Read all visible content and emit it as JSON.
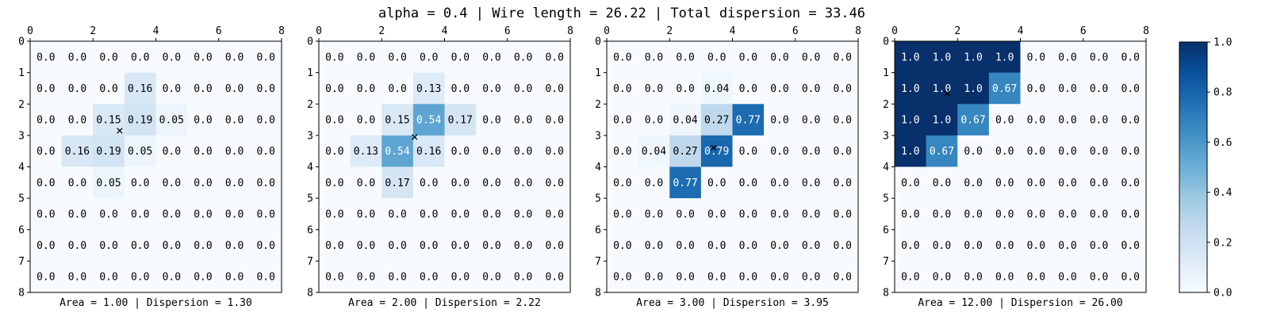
{
  "figure": {
    "title": "alpha = 0.4 | Wire length = 26.22 | Total dispersion = 33.46"
  },
  "chart_data": [
    {
      "type": "heatmap",
      "xlabel": "Area = 1.00 | Dispersion = 1.30",
      "xticks": [
        "0",
        "2",
        "4",
        "6",
        "8"
      ],
      "yticks": [
        "0",
        "1",
        "2",
        "3",
        "4",
        "5",
        "6",
        "7",
        "8"
      ],
      "xlim": [
        0,
        8
      ],
      "ylim": [
        8,
        0
      ],
      "marker": {
        "x": 2.85,
        "y": 2.85,
        "symbol": "×"
      },
      "values": [
        [
          0.0,
          0.0,
          0.0,
          0.0,
          0.0,
          0.0,
          0.0,
          0.0
        ],
        [
          0.0,
          0.0,
          0.0,
          0.16,
          0.0,
          0.0,
          0.0,
          0.0
        ],
        [
          0.0,
          0.0,
          0.15,
          0.19,
          0.05,
          0.0,
          0.0,
          0.0
        ],
        [
          0.0,
          0.16,
          0.19,
          0.05,
          0.0,
          0.0,
          0.0,
          0.0
        ],
        [
          0.0,
          0.0,
          0.05,
          0.0,
          0.0,
          0.0,
          0.0,
          0.0
        ],
        [
          0.0,
          0.0,
          0.0,
          0.0,
          0.0,
          0.0,
          0.0,
          0.0
        ],
        [
          0.0,
          0.0,
          0.0,
          0.0,
          0.0,
          0.0,
          0.0,
          0.0
        ],
        [
          0.0,
          0.0,
          0.0,
          0.0,
          0.0,
          0.0,
          0.0,
          0.0
        ]
      ]
    },
    {
      "type": "heatmap",
      "xlabel": "Area = 2.00 | Dispersion = 2.22",
      "xticks": [
        "0",
        "2",
        "4",
        "6",
        "8"
      ],
      "yticks": [
        "0",
        "1",
        "2",
        "3",
        "4",
        "5",
        "6",
        "7",
        "8"
      ],
      "xlim": [
        0,
        8
      ],
      "ylim": [
        8,
        0
      ],
      "marker": {
        "x": 3.05,
        "y": 3.05,
        "symbol": "×"
      },
      "values": [
        [
          0.0,
          0.0,
          0.0,
          0.0,
          0.0,
          0.0,
          0.0,
          0.0
        ],
        [
          0.0,
          0.0,
          0.0,
          0.13,
          0.0,
          0.0,
          0.0,
          0.0
        ],
        [
          0.0,
          0.0,
          0.15,
          0.54,
          0.17,
          0.0,
          0.0,
          0.0
        ],
        [
          0.0,
          0.13,
          0.54,
          0.16,
          0.0,
          0.0,
          0.0,
          0.0
        ],
        [
          0.0,
          0.0,
          0.17,
          0.0,
          0.0,
          0.0,
          0.0,
          0.0
        ],
        [
          0.0,
          0.0,
          0.0,
          0.0,
          0.0,
          0.0,
          0.0,
          0.0
        ],
        [
          0.0,
          0.0,
          0.0,
          0.0,
          0.0,
          0.0,
          0.0,
          0.0
        ],
        [
          0.0,
          0.0,
          0.0,
          0.0,
          0.0,
          0.0,
          0.0,
          0.0
        ]
      ]
    },
    {
      "type": "heatmap",
      "xlabel": "Area = 3.00 | Dispersion = 3.95",
      "xticks": [
        "0",
        "2",
        "4",
        "6",
        "8"
      ],
      "yticks": [
        "0",
        "1",
        "2",
        "3",
        "4",
        "5",
        "6",
        "7",
        "8"
      ],
      "xlim": [
        0,
        8
      ],
      "ylim": [
        8,
        0
      ],
      "marker": {
        "x": 3.4,
        "y": 3.4,
        "symbol": "×"
      },
      "values": [
        [
          0.0,
          0.0,
          0.0,
          0.0,
          0.0,
          0.0,
          0.0,
          0.0
        ],
        [
          0.0,
          0.0,
          0.0,
          0.04,
          0.0,
          0.0,
          0.0,
          0.0
        ],
        [
          0.0,
          0.0,
          0.04,
          0.27,
          0.77,
          0.0,
          0.0,
          0.0
        ],
        [
          0.0,
          0.04,
          0.27,
          0.79,
          0.0,
          0.0,
          0.0,
          0.0
        ],
        [
          0.0,
          0.0,
          0.77,
          0.0,
          0.0,
          0.0,
          0.0,
          0.0
        ],
        [
          0.0,
          0.0,
          0.0,
          0.0,
          0.0,
          0.0,
          0.0,
          0.0
        ],
        [
          0.0,
          0.0,
          0.0,
          0.0,
          0.0,
          0.0,
          0.0,
          0.0
        ],
        [
          0.0,
          0.0,
          0.0,
          0.0,
          0.0,
          0.0,
          0.0,
          0.0
        ]
      ]
    },
    {
      "type": "heatmap",
      "xlabel": "Area = 12.00 | Dispersion = 26.00",
      "xticks": [
        "0",
        "2",
        "4",
        "6",
        "8"
      ],
      "yticks": [
        "0",
        "1",
        "2",
        "3",
        "4",
        "5",
        "6",
        "7",
        "8"
      ],
      "xlim": [
        0,
        8
      ],
      "ylim": [
        8,
        0
      ],
      "marker": {
        "x": 1.67,
        "y": 1.67,
        "symbol": "×"
      },
      "values": [
        [
          1.0,
          1.0,
          1.0,
          1.0,
          0.0,
          0.0,
          0.0,
          0.0
        ],
        [
          1.0,
          1.0,
          1.0,
          0.67,
          0.0,
          0.0,
          0.0,
          0.0
        ],
        [
          1.0,
          1.0,
          0.67,
          0.0,
          0.0,
          0.0,
          0.0,
          0.0
        ],
        [
          1.0,
          0.67,
          0.0,
          0.0,
          0.0,
          0.0,
          0.0,
          0.0
        ],
        [
          0.0,
          0.0,
          0.0,
          0.0,
          0.0,
          0.0,
          0.0,
          0.0
        ],
        [
          0.0,
          0.0,
          0.0,
          0.0,
          0.0,
          0.0,
          0.0,
          0.0
        ],
        [
          0.0,
          0.0,
          0.0,
          0.0,
          0.0,
          0.0,
          0.0,
          0.0
        ],
        [
          0.0,
          0.0,
          0.0,
          0.0,
          0.0,
          0.0,
          0.0,
          0.0
        ]
      ]
    }
  ],
  "colorbar": {
    "colormap": "Blues",
    "range": [
      0.0,
      1.0
    ],
    "ticks": [
      "0.0",
      "0.2",
      "0.4",
      "0.6",
      "0.8",
      "1.0"
    ]
  },
  "colors": {
    "low": "#f7fbff",
    "high": "#08306b"
  }
}
